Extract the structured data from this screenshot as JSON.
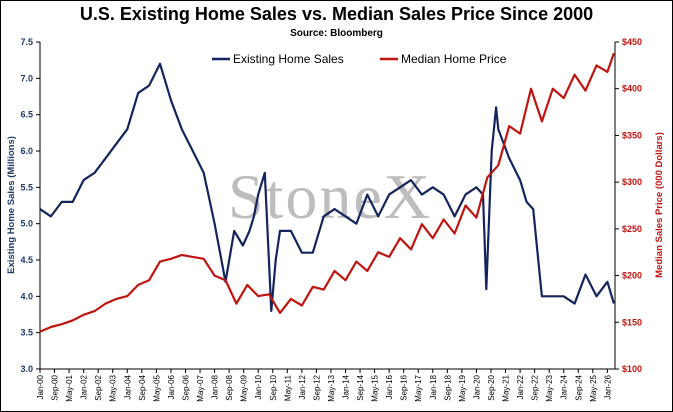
{
  "chart_data": {
    "type": "line",
    "title": "U.S. Existing Home Sales vs. Median Sales Price Since 2000",
    "subtitle": "Source: Bloomberg",
    "watermark": "StoneX",
    "xlabel": "",
    "ylabel_left": "Existing Home Sales (Millions)",
    "ylabel_right": "Median Sales Price (000 Dollars)",
    "ylim_left": [
      3.0,
      7.5
    ],
    "ylim_right": [
      100,
      450
    ],
    "yticks_left": [
      "3.0",
      "3.5",
      "4.0",
      "4.5",
      "5.0",
      "5.5",
      "6.0",
      "6.5",
      "7.0",
      "7.5"
    ],
    "yticks_right": [
      "$100",
      "$150",
      "$200",
      "$250",
      "$300",
      "$350",
      "$400",
      "$450"
    ],
    "x_tick_labels": [
      "Jan-00",
      "Sep-00",
      "May-01",
      "Jan-02",
      "Sep-02",
      "May-03",
      "Jan-04",
      "Sep-04",
      "May-05",
      "Jan-06",
      "Sep-06",
      "May-07",
      "Jan-08",
      "Sep-08",
      "May-09",
      "Jan-10",
      "Sep-10",
      "May-11",
      "Jan-12",
      "Sep-12",
      "May-13",
      "Jan-14",
      "Sep-14",
      "May-15",
      "Jan-16",
      "Sep-16",
      "May-17",
      "Jan-18",
      "Sep-18",
      "May-19",
      "Jan-20",
      "Sep-20",
      "May-21",
      "Jan-22",
      "Sep-22",
      "May-23",
      "Jan-24",
      "Sep-24",
      "May-25",
      "Jan-26"
    ],
    "grid": false,
    "legend_position": "top",
    "series": [
      {
        "name": "Existing Home Sales",
        "axis": "left",
        "color": "#16245e",
        "x": [
          2000.0,
          2000.5,
          2001.0,
          2001.5,
          2002.0,
          2002.5,
          2003.0,
          2003.5,
          2004.0,
          2004.5,
          2005.0,
          2005.5,
          2006.0,
          2006.5,
          2007.0,
          2007.5,
          2008.0,
          2008.5,
          2008.9,
          2009.3,
          2009.6,
          2009.8,
          2010.0,
          2010.3,
          2010.6,
          2010.8,
          2011.0,
          2011.5,
          2012.0,
          2012.5,
          2013.0,
          2013.5,
          2014.0,
          2014.5,
          2015.0,
          2015.5,
          2016.0,
          2016.5,
          2017.0,
          2017.5,
          2018.0,
          2018.5,
          2019.0,
          2019.5,
          2020.0,
          2020.3,
          2020.45,
          2020.7,
          2020.9,
          2021.0,
          2021.5,
          2022.0,
          2022.3,
          2022.6,
          2022.9,
          2023.0,
          2023.5,
          2024.0,
          2024.5,
          2025.0,
          2025.5,
          2026.0,
          2026.3
        ],
        "values": [
          5.2,
          5.1,
          5.3,
          5.3,
          5.6,
          5.7,
          5.9,
          6.1,
          6.3,
          6.8,
          6.9,
          7.2,
          6.7,
          6.3,
          6.0,
          5.7,
          5.0,
          4.2,
          4.9,
          4.7,
          4.9,
          5.1,
          5.4,
          5.7,
          3.8,
          4.5,
          4.9,
          4.9,
          4.6,
          4.6,
          5.1,
          5.2,
          5.1,
          5.0,
          5.4,
          5.1,
          5.4,
          5.5,
          5.6,
          5.4,
          5.5,
          5.4,
          5.1,
          5.4,
          5.5,
          5.4,
          4.1,
          6.0,
          6.6,
          6.3,
          5.9,
          5.6,
          5.3,
          5.2,
          4.3,
          4.0,
          4.0,
          4.0,
          3.9,
          4.3,
          4.0,
          4.2,
          3.9
        ]
      },
      {
        "name": "Median Home Price",
        "axis": "right",
        "color": "#c0140f",
        "x": [
          2000.0,
          2000.5,
          2001.0,
          2001.5,
          2002.0,
          2002.5,
          2003.0,
          2003.5,
          2004.0,
          2004.5,
          2005.0,
          2005.5,
          2006.0,
          2006.5,
          2007.0,
          2007.5,
          2008.0,
          2008.5,
          2009.0,
          2009.5,
          2010.0,
          2010.5,
          2011.0,
          2011.5,
          2012.0,
          2012.5,
          2013.0,
          2013.5,
          2014.0,
          2014.5,
          2015.0,
          2015.5,
          2016.0,
          2016.5,
          2017.0,
          2017.5,
          2018.0,
          2018.5,
          2019.0,
          2019.5,
          2020.0,
          2020.5,
          2021.0,
          2021.5,
          2022.0,
          2022.5,
          2023.0,
          2023.5,
          2024.0,
          2024.5,
          2025.0,
          2025.5,
          2026.0,
          2026.3
        ],
        "values": [
          140,
          145,
          148,
          152,
          158,
          162,
          170,
          175,
          178,
          190,
          195,
          215,
          218,
          222,
          220,
          218,
          200,
          195,
          170,
          190,
          178,
          180,
          160,
          175,
          168,
          188,
          185,
          205,
          195,
          215,
          205,
          225,
          220,
          240,
          228,
          255,
          240,
          260,
          245,
          275,
          262,
          305,
          318,
          360,
          352,
          400,
          365,
          400,
          390,
          415,
          398,
          425,
          418,
          438
        ]
      }
    ]
  }
}
